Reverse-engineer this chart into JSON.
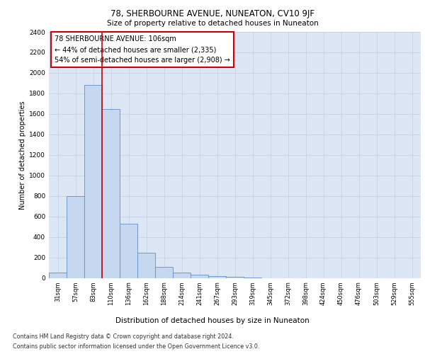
{
  "title": "78, SHERBOURNE AVENUE, NUNEATON, CV10 9JF",
  "subtitle": "Size of property relative to detached houses in Nuneaton",
  "xlabel": "Distribution of detached houses by size in Nuneaton",
  "ylabel": "Number of detached properties",
  "categories": [
    "31sqm",
    "57sqm",
    "83sqm",
    "110sqm",
    "136sqm",
    "162sqm",
    "188sqm",
    "214sqm",
    "241sqm",
    "267sqm",
    "293sqm",
    "319sqm",
    "345sqm",
    "372sqm",
    "398sqm",
    "424sqm",
    "450sqm",
    "476sqm",
    "503sqm",
    "529sqm",
    "555sqm"
  ],
  "values": [
    52,
    800,
    1880,
    1650,
    530,
    245,
    110,
    52,
    30,
    20,
    10,
    5,
    0,
    0,
    0,
    0,
    0,
    0,
    0,
    0,
    0
  ],
  "bar_color": "#c5d8f0",
  "bar_edge_color": "#6090c8",
  "property_line_x": 2.5,
  "annotation_title": "78 SHERBOURNE AVENUE: 106sqm",
  "annotation_line1": "← 44% of detached houses are smaller (2,335)",
  "annotation_line2": "54% of semi-detached houses are larger (2,908) →",
  "annotation_box_color": "#ffffff",
  "annotation_box_edge_color": "#cc0000",
  "vline_color": "#cc0000",
  "ylim": [
    0,
    2400
  ],
  "yticks": [
    0,
    200,
    400,
    600,
    800,
    1000,
    1200,
    1400,
    1600,
    1800,
    2000,
    2200,
    2400
  ],
  "grid_color": "#c8d4e8",
  "bg_color": "#dce6f4",
  "footnote1": "Contains HM Land Registry data © Crown copyright and database right 2024.",
  "footnote2": "Contains public sector information licensed under the Open Government Licence v3.0."
}
